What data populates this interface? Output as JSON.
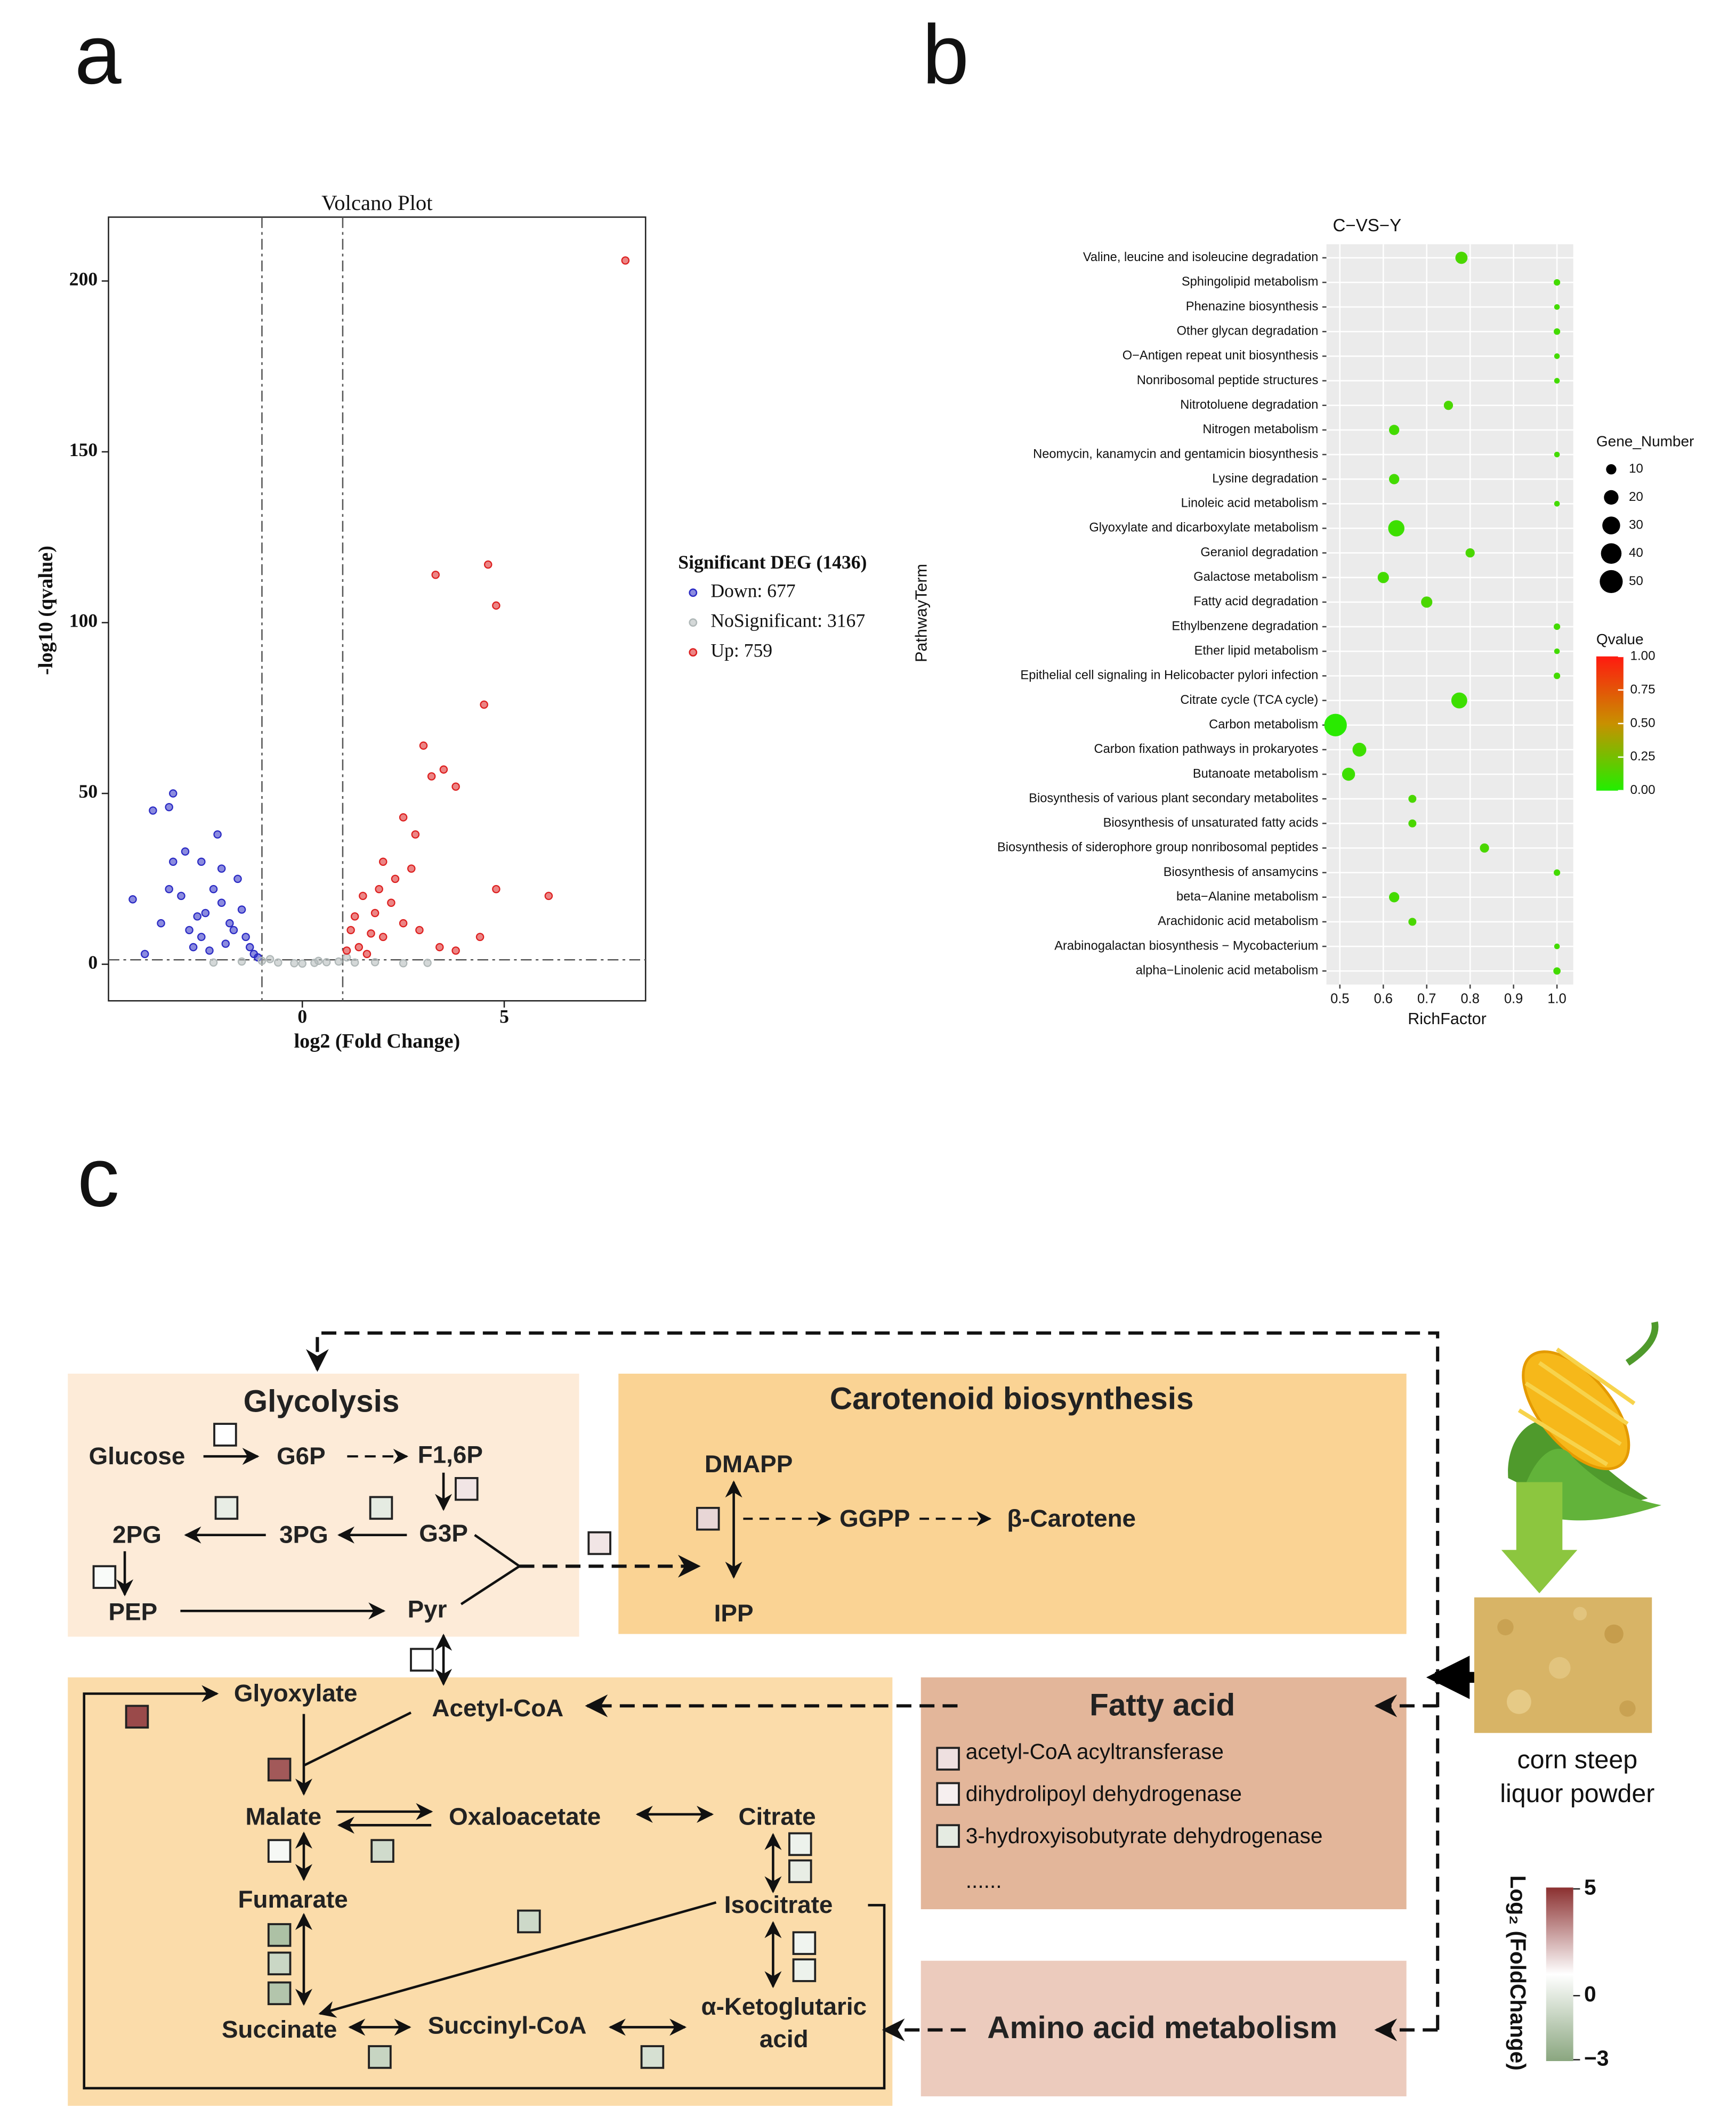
{
  "panels": [
    "a",
    "b",
    "c"
  ],
  "chart_data": [
    {
      "type": "scatter",
      "title": "Volcano Plot",
      "xlabel": "log2 (Fold Change)",
      "ylabel": "-log10 (qvalue)",
      "xlim": [
        -4.8,
        8.5
      ],
      "ylim": [
        -10.7,
        218.7
      ],
      "xticks": [
        0,
        5
      ],
      "yticks": [
        0,
        50,
        100,
        150,
        200
      ],
      "vlines": [
        -1,
        1
      ],
      "hline": 1.3,
      "legend_title": "Significant DEG (1436)",
      "series": [
        {
          "name": "Down: 677",
          "color": "#2b2bc4",
          "x": [
            -4.2,
            -3.2,
            -3.3,
            -3.7,
            -2.1,
            -2.9,
            -3.2,
            -2.5,
            -2.0,
            -1.6,
            -3.5,
            -3.0,
            -2.4,
            -1.8,
            -1.4,
            -2.7,
            -3.9,
            -1.2,
            -2.0,
            -1.5,
            -2.8,
            -2.2,
            -3.3,
            -1.9,
            -2.5,
            -1.3,
            -1.7,
            -2.3,
            -1.1,
            -2.6
          ],
          "y": [
            19,
            50,
            46,
            45,
            38,
            33,
            30,
            30,
            28,
            25,
            12,
            20,
            15,
            12,
            8,
            5,
            3,
            3,
            18,
            16,
            10,
            22,
            22,
            6,
            8,
            5,
            10,
            4,
            2,
            14
          ]
        },
        {
          "name": "NoSignificant: 3167",
          "color": "#b0b8b8",
          "x": [
            -1.0,
            -0.6,
            -0.2,
            0.0,
            0.3,
            0.6,
            0.9,
            1.3,
            1.8,
            2.5,
            3.1,
            -1.5,
            -2.2,
            1.1,
            -0.8,
            0.4
          ],
          "y": [
            1,
            0.5,
            0.3,
            0.2,
            0.4,
            0.6,
            0.8,
            0.5,
            0.6,
            0.3,
            0.4,
            0.8,
            0.5,
            2,
            1.5,
            1
          ]
        },
        {
          "name": "Up: 759",
          "color": "#dd2020",
          "x": [
            8.0,
            4.6,
            3.3,
            4.8,
            4.5,
            3.0,
            3.5,
            3.2,
            3.8,
            2.5,
            2.8,
            4.8,
            6.1,
            3.4,
            4.4,
            3.8,
            2.0,
            2.3,
            1.5,
            1.8,
            1.2,
            1.4,
            2.5,
            2.0,
            1.6,
            2.2,
            2.7,
            1.9,
            1.3,
            2.9,
            1.1,
            1.7
          ],
          "y": [
            206,
            117,
            114,
            105,
            76,
            64,
            57,
            55,
            52,
            43,
            38,
            22,
            20,
            5,
            8,
            4,
            30,
            25,
            20,
            15,
            10,
            5,
            12,
            8,
            3,
            18,
            28,
            22,
            14,
            10,
            4,
            9
          ]
        }
      ]
    },
    {
      "type": "bubble",
      "title": "C−VS−Y",
      "xlabel": "RichFactor",
      "ylabel": "PathwayTerm",
      "categories": [
        "Valine, leucine and isoleucine degradation",
        "Sphingolipid metabolism",
        "Phenazine biosynthesis",
        "Other glycan degradation",
        "O−Antigen repeat unit biosynthesis",
        "Nonribosomal peptide structures",
        "Nitrotoluene degradation",
        "Nitrogen metabolism",
        "Neomycin, kanamycin and gentamicin biosynthesis",
        "Lysine degradation",
        "Linoleic acid metabolism",
        "Glyoxylate and dicarboxylate metabolism",
        "Geraniol degradation",
        "Galactose metabolism",
        "Fatty acid degradation",
        "Ethylbenzene degradation",
        "Ether lipid metabolism",
        "Epithelial cell signaling in Helicobacter pylori infection",
        "Citrate cycle (TCA cycle)",
        "Carbon metabolism",
        "Carbon fixation pathways in prokaryotes",
        "Butanoate metabolism",
        "Biosynthesis of various plant secondary metabolites",
        "Biosynthesis of unsaturated fatty acids",
        "Biosynthesis of siderophore group nonribosomal peptides",
        "Biosynthesis of ansamycins",
        "beta−Alanine metabolism",
        "Arachidonic acid metabolism",
        "Arabinogalactan biosynthesis − Mycobacterium",
        "alpha−Linolenic acid metabolism"
      ],
      "values": [
        0.78,
        1.0,
        1.0,
        1.0,
        1.0,
        1.0,
        0.75,
        0.625,
        1.0,
        0.625,
        1.0,
        0.63,
        0.8,
        0.6,
        0.7,
        1.0,
        1.0,
        1.0,
        0.775,
        0.49,
        0.545,
        0.52,
        0.667,
        0.667,
        0.833,
        1.0,
        0.625,
        0.667,
        1.0,
        1.0
      ],
      "sizes": [
        14,
        4,
        3,
        4,
        3,
        3,
        8,
        10,
        3,
        10,
        3,
        25,
        8,
        12,
        12,
        4,
        3,
        4,
        24,
        48,
        18,
        16,
        6,
        6,
        8,
        4,
        10,
        6,
        3,
        5
      ],
      "qvalues": [
        0.12,
        0.1,
        0.1,
        0.1,
        0.1,
        0.1,
        0.12,
        0.1,
        0.1,
        0.1,
        0.1,
        0.08,
        0.12,
        0.1,
        0.12,
        0.1,
        0.1,
        0.1,
        0.08,
        0.02,
        0.08,
        0.08,
        0.12,
        0.12,
        0.12,
        0.1,
        0.1,
        0.12,
        0.1,
        0.1
      ],
      "xlim": [
        0.469,
        1.0375
      ],
      "xticks": [
        0.5,
        0.6,
        0.7,
        0.8,
        0.9,
        {
          "value": 1,
          "label": "1.0"
        }
      ],
      "size_legend_title": "Gene_Number",
      "size_legend": [
        10,
        20,
        30,
        40,
        50
      ],
      "color_legend_title": "Qvalue",
      "color_lim": [
        0,
        1
      ],
      "color_ticks": [
        {
          "value": 1,
          "label": "1.00"
        },
        {
          "value": 0.75,
          "label": "0.75"
        },
        {
          "value": 0.5,
          "label": "0.50"
        },
        {
          "value": 0.25,
          "label": "0.25"
        },
        {
          "value": 0,
          "label": "0.00"
        }
      ],
      "color_stops": [
        "#22ee00",
        "#c89000",
        "#ff1a10"
      ],
      "grid": true
    }
  ],
  "diagram": {
    "boxes": [
      "Glycolysis",
      "Carotenoid biosynthesis",
      "Fatty acid",
      "Amino acid metabolism"
    ],
    "metabolites": [
      "Glucose",
      "G6P",
      "F1,6P",
      "2PG",
      "3PG",
      "G3P",
      "PEP",
      "Pyr",
      "DMAPP",
      "GGPP",
      "β-Carotene",
      "IPP",
      "Glyoxylate",
      "Acetyl-CoA",
      "Malate",
      "Oxaloacetate",
      "Citrate",
      "Fumarate",
      "Isocitrate",
      "Succinate",
      "Succinyl-CoA",
      "α-Ketoglutaric",
      "acid"
    ],
    "fatty_acid_items": [
      "acetyl-CoA acyltransferase",
      "dihydrolipoyl dehydrogenase",
      "3-hydroxyisobutyrate dehydrogenase",
      "......"
    ],
    "source": [
      "corn steep",
      "liquor powder"
    ],
    "fold_changes": [
      1.0,
      1.5,
      0.2,
      0.1,
      0.8,
      1.5,
      1.8,
      1.0,
      4.5,
      4.2,
      0.7,
      -0.6,
      0.4,
      0.2,
      -1.8,
      -0.8,
      -1.6,
      -0.7,
      0.5,
      0.4,
      -0.9,
      -0.4,
      1.6,
      1.3,
      0.1
    ],
    "fold_legend": {
      "label": "Log₂ (FoldChange)",
      "lim": [
        -3,
        5
      ],
      "ticks": [
        5,
        0,
        {
          "value": -3,
          "label": "−3"
        }
      ],
      "colors": [
        "#8aa67f",
        "#ffffff",
        "#8b3030"
      ]
    }
  }
}
